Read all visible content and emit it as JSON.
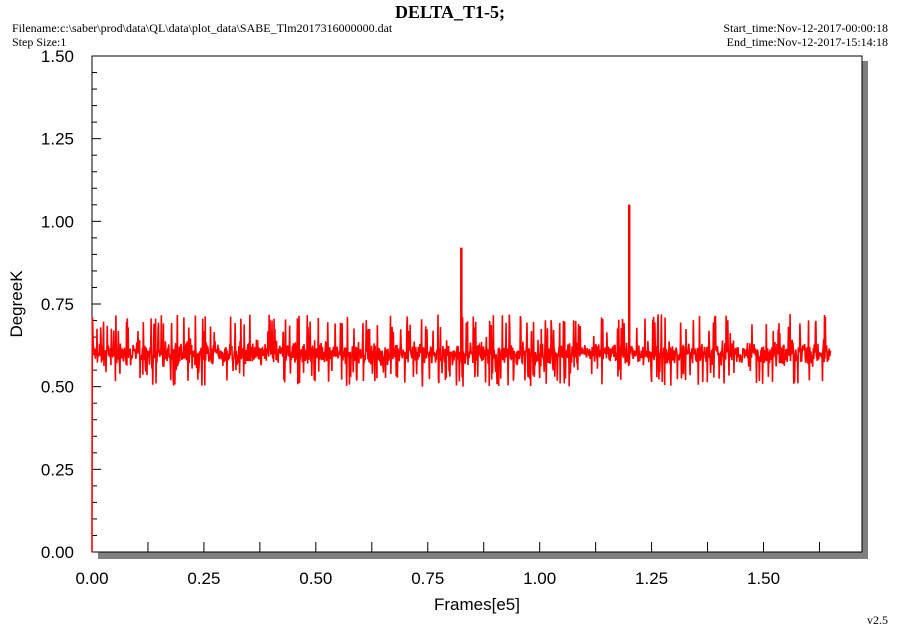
{
  "header": {
    "title": "DELTA_T1-5;",
    "filename": "Filename:c:\\saber\\prod\\data\\QL\\data\\plot_data\\SABE_Tlm2017316000000.dat",
    "step_size": "Step Size:1",
    "start_time": "Start_time:Nov-12-2017-00:00:18",
    "end_time": "End_time:Nov-12-2017-15:14:18",
    "version": "v2.5"
  },
  "colors": {
    "series": "#ff0000",
    "background": "#ffffff",
    "shadow": "#7f7f7f"
  },
  "chart_data": {
    "type": "line",
    "title": "DELTA_T1-5;",
    "xlabel": "Frames[e5]",
    "ylabel": "DegreeK",
    "xlim": [
      0.0,
      1.72
    ],
    "ylim": [
      0.0,
      1.5
    ],
    "xticks": [
      0.0,
      0.25,
      0.5,
      0.75,
      1.0,
      1.25,
      1.5
    ],
    "xtick_labels": [
      "0.00",
      "0.25",
      "0.50",
      "0.75",
      "1.00",
      "1.25",
      "1.50"
    ],
    "yticks": [
      0.0,
      0.25,
      0.5,
      0.75,
      1.0,
      1.25,
      1.5
    ],
    "ytick_labels": [
      "0.00",
      "0.25",
      "0.50",
      "0.75",
      "1.00",
      "1.25",
      "1.50"
    ],
    "grid": false,
    "series": [
      {
        "x_start": 0.0,
        "x_end": 1.65,
        "initial_values": [
          0.0,
          0.6,
          0.71
        ],
        "noise_band": [
          0.5,
          0.72
        ],
        "typical_range": [
          0.55,
          0.66
        ],
        "center": 0.6,
        "spikes": [
          {
            "x": 0.825,
            "y": 0.92
          },
          {
            "x": 1.2,
            "y": 1.05
          }
        ]
      }
    ]
  }
}
